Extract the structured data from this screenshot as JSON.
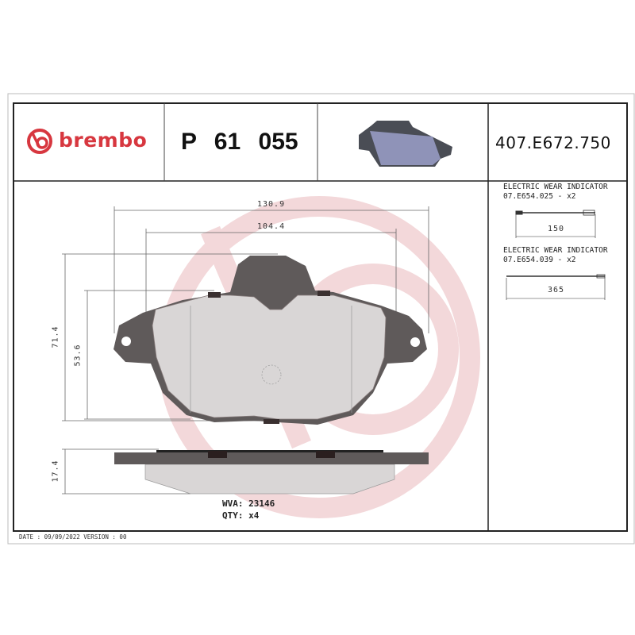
{
  "header": {
    "brand": "brembo",
    "part_number": "P 61 055",
    "reference": "407.E672.750"
  },
  "drawing": {
    "dimensions": {
      "overall_width": "130.9",
      "inner_width": "104.4",
      "overall_height": "71.4",
      "friction_height": "53.6",
      "thickness": "17.4"
    },
    "wva_label": "WVA:",
    "wva_value": "23146",
    "qty_label": "QTY:",
    "qty_value": "x4"
  },
  "accessories": [
    {
      "title": "ELECTRIC WEAR INDICATOR",
      "code": "07.E654.025 - x2",
      "length": "150"
    },
    {
      "title": "ELECTRIC WEAR INDICATOR",
      "code": "07.E654.039 - x2",
      "length": "365"
    }
  ],
  "footer": {
    "date_version": "DATE : 09/09/2022 VERSION : 00"
  },
  "colors": {
    "brand_red": "#d7373f",
    "watermark": "#f2d4d6",
    "backplate": "#5f5a5a",
    "friction": "#d9d6d6"
  }
}
